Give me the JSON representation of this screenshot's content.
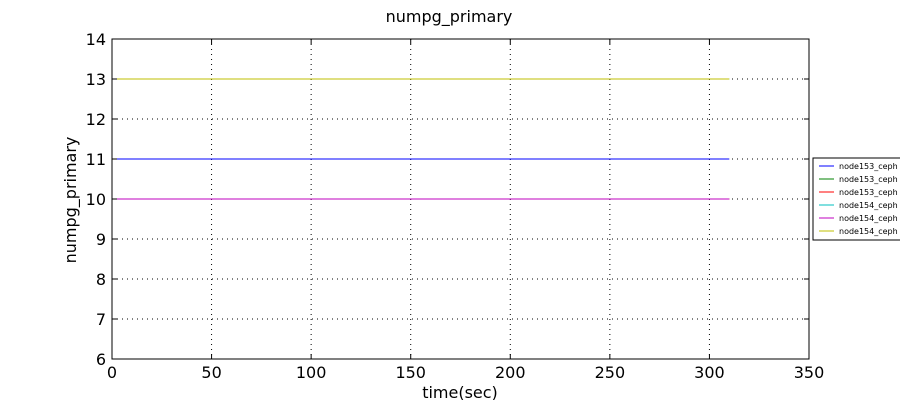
{
  "chart_data": {
    "type": "line",
    "title": "numpg_primary",
    "xlabel": "time(sec)",
    "ylabel": "numpg_primary",
    "xlim": [
      0,
      350
    ],
    "ylim": [
      6,
      14
    ],
    "xticks": [
      0,
      50,
      100,
      150,
      200,
      250,
      300,
      350
    ],
    "yticks": [
      6,
      7,
      8,
      9,
      10,
      11,
      12,
      13,
      14
    ],
    "grid": true,
    "legend_position": "right",
    "series": [
      {
        "name": "node153_ceph",
        "color": "#0000ff",
        "x": [
          0,
          310
        ],
        "y": [
          11,
          11
        ]
      },
      {
        "name": "node153_ceph",
        "color": "#008000",
        "x": [
          0,
          310
        ],
        "y": [
          10,
          10
        ]
      },
      {
        "name": "node153_ceph",
        "color": "#ff0000",
        "x": [
          0,
          310
        ],
        "y": [
          10,
          10
        ]
      },
      {
        "name": "node154_ceph",
        "color": "#00bfbf",
        "x": [
          0,
          310
        ],
        "y": [
          13,
          13
        ]
      },
      {
        "name": "node154_ceph",
        "color": "#bf00bf",
        "x": [
          0,
          310
        ],
        "y": [
          10,
          10
        ]
      },
      {
        "name": "node154_ceph",
        "color": "#bfbf00",
        "x": [
          0,
          310
        ],
        "y": [
          13,
          13
        ]
      }
    ]
  }
}
